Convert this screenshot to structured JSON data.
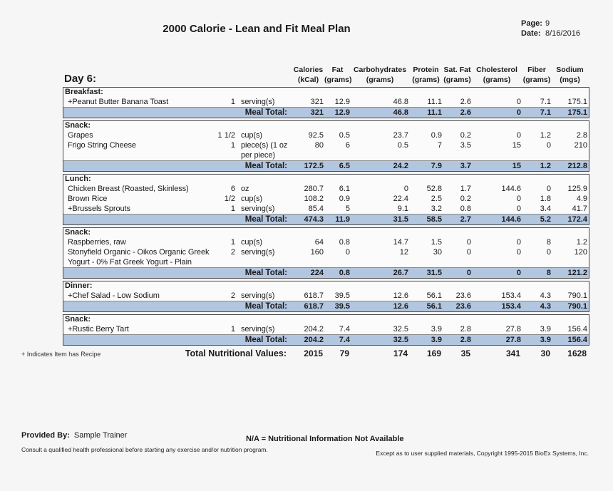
{
  "header": {
    "title": "2000 Calorie - Lean and Fit Meal Plan",
    "page_label": "Page:",
    "page_value": "9",
    "date_label": "Date:",
    "date_value": "8/16/2016"
  },
  "day_label": "Day 6:",
  "columns": [
    {
      "label": "Calories",
      "unit": "(kCal)"
    },
    {
      "label": "Fat",
      "unit": "(grams)"
    },
    {
      "label": "Carbohydrates",
      "unit": "(grams)"
    },
    {
      "label": "Protein",
      "unit": "(grams)"
    },
    {
      "label": "Sat. Fat",
      "unit": "(grams)"
    },
    {
      "label": "Cholesterol",
      "unit": "(grams)"
    },
    {
      "label": "Fiber",
      "unit": "(grams)"
    },
    {
      "label": "Sodium",
      "unit": "(mgs)"
    }
  ],
  "meal_total_label": "Meal Total:",
  "sections": [
    {
      "name": "Breakfast:",
      "items": [
        {
          "name": "+Peanut Butter Banana Toast",
          "qty": "1",
          "unit": "serving(s)",
          "values": [
            "321",
            "12.9",
            "46.8",
            "11.1",
            "2.6",
            "0",
            "7.1",
            "175.1"
          ]
        }
      ],
      "total": [
        "321",
        "12.9",
        "46.8",
        "11.1",
        "2.6",
        "0",
        "7.1",
        "175.1"
      ]
    },
    {
      "name": "Snack:",
      "items": [
        {
          "name": "Grapes",
          "qty": "1 1/2",
          "unit": "cup(s)",
          "values": [
            "92.5",
            "0.5",
            "23.7",
            "0.9",
            "0.2",
            "0",
            "1.2",
            "2.8"
          ]
        },
        {
          "name": "Frigo String Cheese",
          "qty": "1",
          "unit": "piece(s) (1 oz per piece)",
          "values": [
            "80",
            "6",
            "0.5",
            "7",
            "3.5",
            "15",
            "0",
            "210"
          ]
        }
      ],
      "total": [
        "172.5",
        "6.5",
        "24.2",
        "7.9",
        "3.7",
        "15",
        "1.2",
        "212.8"
      ]
    },
    {
      "name": "Lunch:",
      "items": [
        {
          "name": "Chicken Breast (Roasted, Skinless)",
          "qty": "6",
          "unit": "oz",
          "values": [
            "280.7",
            "6.1",
            "0",
            "52.8",
            "1.7",
            "144.6",
            "0",
            "125.9"
          ]
        },
        {
          "name": "Brown Rice",
          "qty": "1/2",
          "unit": "cup(s)",
          "values": [
            "108.2",
            "0.9",
            "22.4",
            "2.5",
            "0.2",
            "0",
            "1.8",
            "4.9"
          ]
        },
        {
          "name": "+Brussels Sprouts",
          "qty": "1",
          "unit": "serving(s)",
          "values": [
            "85.4",
            "5",
            "9.1",
            "3.2",
            "0.8",
            "0",
            "3.4",
            "41.7"
          ]
        }
      ],
      "total": [
        "474.3",
        "11.9",
        "31.5",
        "58.5",
        "2.7",
        "144.6",
        "5.2",
        "172.4"
      ]
    },
    {
      "name": "Snack:",
      "items": [
        {
          "name": "Raspberries, raw",
          "qty": "1",
          "unit": "cup(s)",
          "values": [
            "64",
            "0.8",
            "14.7",
            "1.5",
            "0",
            "0",
            "8",
            "1.2"
          ]
        },
        {
          "name": "Stonyfield Organic - Oikos Organic Greek Yogurt - 0% Fat Greek Yogurt - Plain",
          "qty": "2",
          "unit": "serving(s)",
          "values": [
            "160",
            "0",
            "12",
            "30",
            "0",
            "0",
            "0",
            "120"
          ]
        }
      ],
      "total": [
        "224",
        "0.8",
        "26.7",
        "31.5",
        "0",
        "0",
        "8",
        "121.2"
      ]
    },
    {
      "name": "Dinner:",
      "items": [
        {
          "name": "+Chef Salad - Low Sodium",
          "qty": "2",
          "unit": "serving(s)",
          "values": [
            "618.7",
            "39.5",
            "12.6",
            "56.1",
            "23.6",
            "153.4",
            "4.3",
            "790.1"
          ]
        }
      ],
      "total": [
        "618.7",
        "39.5",
        "12.6",
        "56.1",
        "23.6",
        "153.4",
        "4.3",
        "790.1"
      ]
    },
    {
      "name": "Snack:",
      "items": [
        {
          "name": "+Rustic Berry Tart",
          "qty": "1",
          "unit": "serving(s)",
          "values": [
            "204.2",
            "7.4",
            "32.5",
            "3.9",
            "2.8",
            "27.8",
            "3.9",
            "156.4"
          ]
        }
      ],
      "total": [
        "204.2",
        "7.4",
        "32.5",
        "3.9",
        "2.8",
        "27.8",
        "3.9",
        "156.4"
      ]
    }
  ],
  "grand_total": {
    "recipe_note": "+ Indicates Item has Recipe",
    "label": "Total Nutritional Values:",
    "values": [
      "2015",
      "79",
      "174",
      "169",
      "35",
      "341",
      "30",
      "1628"
    ]
  },
  "footer": {
    "provided_by_label": "Provided By:",
    "provided_by_value": "Sample Trainer",
    "na_note": "N/A = Nutritional Information Not Available",
    "disclaimer": "Consult a qualified health professional before starting any exercise and/or nutrition program.",
    "copyright": "Except as to user supplied materials, Copyright 1995-2015 BioEx Systems, Inc."
  },
  "colors": {
    "total_row_bg": "#b3c6e0",
    "section_border": "#4a4a4a"
  }
}
